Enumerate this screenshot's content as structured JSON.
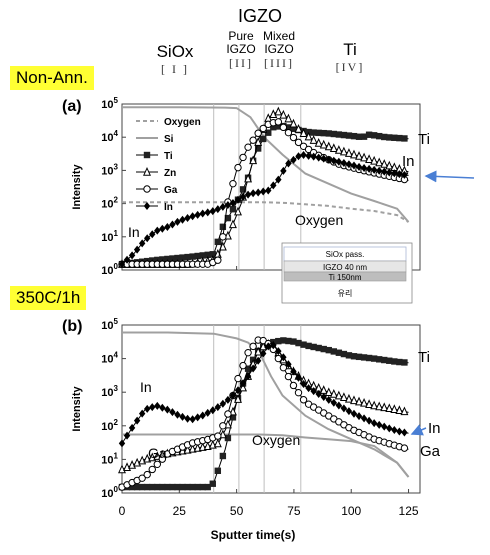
{
  "header": {
    "igzo_label": "IGZO",
    "regions": [
      {
        "name": "SiOx",
        "numeral": "[ I ]"
      },
      {
        "name": "Pure\nIGZO",
        "numeral": "[II]"
      },
      {
        "name": "Mixed\nIGZO",
        "numeral": "[III]"
      },
      {
        "name": "Ti",
        "numeral": "[IV]"
      }
    ]
  },
  "panels": [
    {
      "condition": "Non-Ann.",
      "tag": "(a)"
    },
    {
      "condition": "350C/1h",
      "tag": "(b)"
    }
  ],
  "stack_inset": {
    "layers": [
      "SiOx pass.",
      "IGZO 40 nm",
      "Ti 150nm",
      "유리"
    ]
  },
  "colors": {
    "accent_arrow": "#4a7fd4",
    "highlight": "#ffff33",
    "oxygen_si": "#a0a0a0",
    "ti": "#222222"
  },
  "chart_data": [
    {
      "type": "line",
      "title": "",
      "xlabel": "Sputter time(s)",
      "ylabel": "Intensity",
      "y_scale": "log",
      "xlim": [
        0,
        130
      ],
      "ylim": [
        1,
        100000
      ],
      "x_ticks": [
        0,
        25,
        50,
        75,
        100,
        125
      ],
      "y_ticks": [
        "10^0",
        "10^1",
        "10^2",
        "10^3",
        "10^4",
        "10^5"
      ],
      "legend": [
        "Oxygen",
        "Si",
        "Ti",
        "Zn",
        "Ga",
        "In"
      ],
      "legend_position": "top-left",
      "annotations": [
        "In",
        "Oxygen",
        "Ti",
        "In"
      ],
      "series": [
        {
          "name": "Oxygen",
          "style": "dashed-gray",
          "x": [
            0,
            20,
            40,
            50,
            60,
            66,
            72,
            80,
            90,
            100,
            110,
            120,
            125
          ],
          "y": [
            110,
            110,
            110,
            110,
            110,
            108,
            104,
            95,
            85,
            70,
            60,
            45,
            28
          ]
        },
        {
          "name": "Si",
          "style": "solid-gray",
          "x": [
            0,
            25,
            45,
            50,
            56,
            62,
            70,
            80,
            90,
            100,
            110,
            120,
            125
          ],
          "y": [
            80000,
            80000,
            78000,
            75000,
            40000,
            10000,
            3000,
            800,
            400,
            200,
            120,
            70,
            28
          ]
        },
        {
          "name": "Ti",
          "style": "filled-square",
          "x": [
            0,
            15,
            30,
            40,
            44,
            48,
            52,
            55,
            58,
            62,
            66,
            70,
            76,
            82,
            90,
            100,
            105,
            108,
            115,
            125
          ],
          "y": [
            1.5,
            2,
            2.5,
            3,
            20,
            60,
            200,
            600,
            3000,
            10000,
            20000,
            22000,
            17000,
            14000,
            13000,
            11000,
            10000,
            12000,
            10000,
            9000
          ]
        },
        {
          "name": "Zn",
          "style": "open-triangle",
          "x": [
            0,
            15,
            30,
            40,
            44,
            48,
            52,
            56,
            60,
            64,
            68,
            72,
            78,
            85,
            95,
            105,
            115,
            125
          ],
          "y": [
            1.5,
            1.5,
            1.5,
            2,
            5,
            20,
            100,
            1000,
            10000,
            40000,
            60000,
            40000,
            15000,
            7000,
            4000,
            2500,
            1500,
            900
          ]
        },
        {
          "name": "Ga",
          "style": "open-circle",
          "x": [
            0,
            15,
            30,
            38,
            42,
            44,
            46,
            50,
            55,
            60,
            64,
            68,
            72,
            78,
            85,
            95,
            105,
            115,
            125
          ],
          "y": [
            1.5,
            1.5,
            1.5,
            1.5,
            2,
            10,
            100,
            1000,
            5000,
            15000,
            25000,
            30000,
            15000,
            6000,
            3000,
            1500,
            1000,
            700,
            500
          ]
        },
        {
          "name": "In",
          "style": "filled-diamond",
          "x": [
            0,
            5,
            10,
            15,
            20,
            25,
            30,
            35,
            40,
            44,
            48,
            52,
            56,
            60,
            64,
            68,
            72,
            78,
            85,
            95,
            105,
            115,
            125
          ],
          "y": [
            1.5,
            3,
            8,
            15,
            20,
            30,
            40,
            50,
            60,
            80,
            100,
            150,
            200,
            220,
            250,
            500,
            1500,
            3000,
            2500,
            1800,
            1200,
            900,
            700
          ]
        }
      ]
    },
    {
      "type": "line",
      "title": "",
      "xlabel": "Sputter time(s)",
      "ylabel": "Intensity",
      "y_scale": "log",
      "xlim": [
        0,
        130
      ],
      "ylim": [
        1,
        100000
      ],
      "x_ticks": [
        0,
        25,
        50,
        75,
        100,
        125
      ],
      "x_tick_labels": [
        "0",
        "25",
        "50",
        "75",
        "100",
        "125"
      ],
      "y_ticks": [
        "10^0",
        "10^1",
        "10^2",
        "10^3",
        "10^4",
        "10^5"
      ],
      "annotations": [
        "In",
        "Ga",
        "Oxygen",
        "Ti",
        "In",
        "Ga"
      ],
      "series": [
        {
          "name": "Oxygen",
          "style": "solid-gray",
          "x": [
            0,
            20,
            40,
            50,
            60,
            70,
            80,
            90,
            100,
            110,
            120,
            125
          ],
          "y": [
            55,
            55,
            55,
            55,
            55,
            52,
            45,
            40,
            35,
            25,
            8,
            3
          ]
        },
        {
          "name": "Si",
          "style": "solid-gray",
          "x": [
            0,
            20,
            40,
            50,
            55,
            60,
            65,
            70,
            80,
            90,
            100,
            110,
            120,
            125
          ],
          "y": [
            60000,
            60000,
            55000,
            40000,
            30000,
            15000,
            3000,
            800,
            200,
            80,
            40,
            20,
            8,
            3
          ]
        },
        {
          "name": "Ti",
          "style": "filled-square",
          "x": [
            0,
            20,
            38,
            40,
            45,
            50,
            55,
            60,
            65,
            70,
            75,
            80,
            90,
            100,
            110,
            120,
            125
          ],
          "y": [
            1.5,
            1.5,
            1.5,
            2,
            20,
            500,
            5000,
            20000,
            30000,
            35000,
            32000,
            25000,
            18000,
            12000,
            10000,
            8000,
            7500
          ]
        },
        {
          "name": "Zn",
          "style": "open-triangle",
          "x": [
            0,
            10,
            20,
            30,
            38,
            42,
            46,
            50,
            55,
            60,
            65,
            70,
            75,
            80,
            90,
            100,
            110,
            120,
            125
          ],
          "y": [
            5,
            10,
            15,
            20,
            25,
            30,
            100,
            500,
            3000,
            20000,
            30000,
            10000,
            4000,
            2000,
            1000,
            600,
            400,
            300,
            250
          ]
        },
        {
          "name": "Ga",
          "style": "open-circle",
          "x": [
            0,
            10,
            20,
            30,
            38,
            42,
            46,
            50,
            55,
            60,
            65,
            70,
            75,
            80,
            90,
            100,
            110,
            120,
            125
          ],
          "y": [
            1.5,
            3,
            15,
            30,
            40,
            50,
            200,
            2000,
            15000,
            40000,
            25000,
            6000,
            1500,
            500,
            200,
            80,
            40,
            25,
            20
          ]
        },
        {
          "name": "In",
          "style": "filled-diamond",
          "x": [
            0,
            5,
            10,
            15,
            20,
            25,
            30,
            35,
            40,
            45,
            50,
            55,
            60,
            65,
            70,
            75,
            80,
            90,
            100,
            110,
            120,
            125
          ],
          "y": [
            30,
            100,
            300,
            400,
            300,
            200,
            150,
            200,
            300,
            500,
            1000,
            3000,
            10000,
            30000,
            12000,
            4000,
            1500,
            600,
            250,
            120,
            70,
            60
          ]
        }
      ]
    }
  ]
}
